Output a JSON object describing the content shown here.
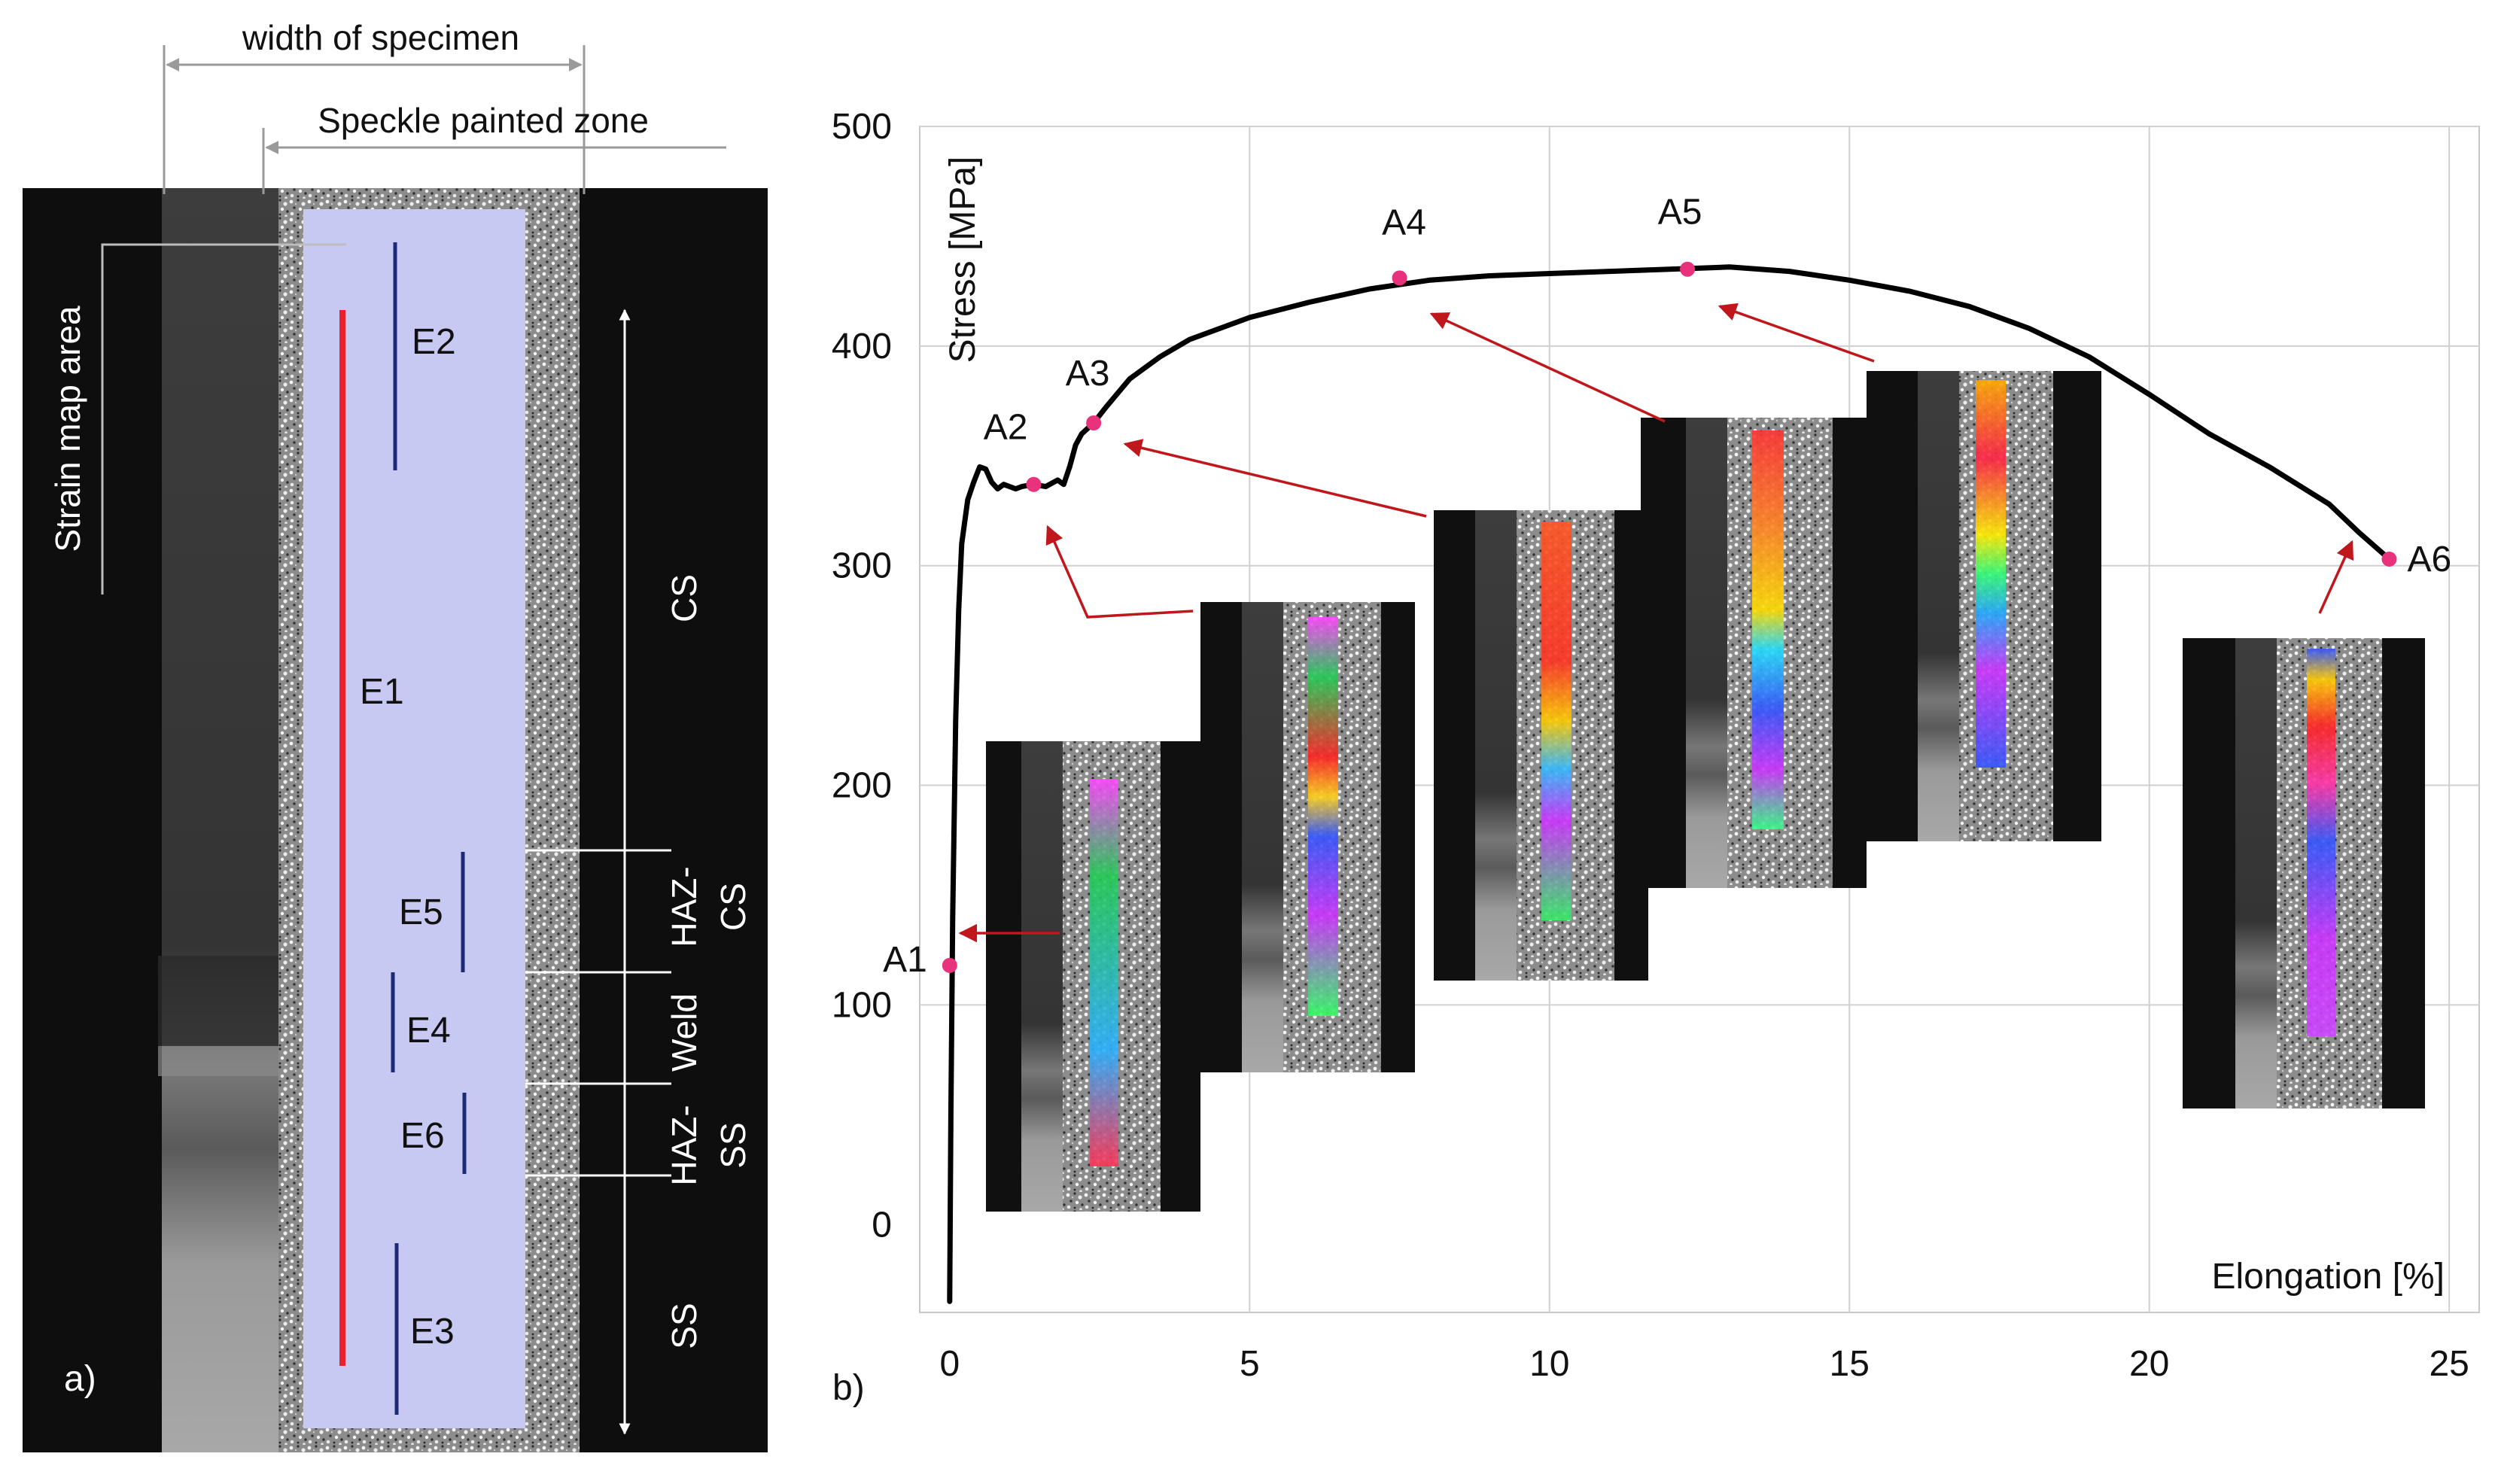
{
  "panel_a": {
    "panel_label": "a)",
    "width_label": "width of specimen",
    "speckle_label": "Speckle painted zone",
    "strain_map_label": "Strain map area",
    "lines": [
      {
        "id": "E1",
        "label": "E1",
        "color": "#e8212b"
      },
      {
        "id": "E2",
        "label": "E2",
        "color": "#1c2a78"
      },
      {
        "id": "E3",
        "label": "E3",
        "color": "#1c2a78"
      },
      {
        "id": "E4",
        "label": "E4",
        "color": "#1c2a78"
      },
      {
        "id": "E5",
        "label": "E5",
        "color": "#1c2a78"
      },
      {
        "id": "E6",
        "label": "E6",
        "color": "#1c2a78"
      }
    ],
    "zones": {
      "cs": "CS",
      "haz_cs_line1": "HAZ-",
      "haz_cs_line2": "CS",
      "weld": "Weld",
      "haz_ss_line1": "HAZ-",
      "haz_ss_line2": "SS",
      "ss": "SS"
    },
    "colors": {
      "background": "#111111",
      "strain_map_area": "#c7c9f2",
      "speckle": "#9d9d9d"
    }
  },
  "panel_b": {
    "panel_label": "b)",
    "point_color": "#e8327c",
    "arrow_color": "#c0171c",
    "curve_color": "#000000"
  },
  "chart_data": {
    "type": "line",
    "title": "",
    "xlabel": "Elongation [%]",
    "ylabel": "Stress [MPa]",
    "xlim": [
      -0.5,
      25.5
    ],
    "ylim": [
      -40,
      500
    ],
    "xticks": [
      "0",
      "5",
      "10",
      "15",
      "20",
      "25"
    ],
    "yticks": [
      "0",
      "100",
      "200",
      "300",
      "400",
      "500"
    ],
    "grid": true,
    "series": [
      {
        "x": [
          0,
          0.02,
          0.05,
          0.1,
          0.15,
          0.2,
          0.3,
          0.4,
          0.5,
          0.6,
          0.7,
          0.8,
          0.9,
          1.0,
          1.1,
          1.2,
          1.4,
          1.6,
          1.8,
          1.9,
          2.0,
          2.1,
          2.2,
          2.4,
          2.6,
          3.0,
          3.5,
          4.0,
          5.0,
          6.0,
          7.0,
          8.0,
          9.0,
          10.0,
          11.0,
          12.0,
          13.0,
          14.0,
          15.0,
          16.0,
          17.0,
          18.0,
          19.0,
          20.0,
          21.0,
          22.0,
          23.0,
          23.5,
          24.0
        ],
        "y": [
          -35,
          50,
          140,
          230,
          280,
          310,
          330,
          338,
          345,
          344,
          338,
          335,
          337,
          336,
          335,
          336,
          337,
          336,
          339,
          337,
          345,
          355,
          360,
          365,
          372,
          385,
          395,
          403,
          413,
          420,
          426,
          430,
          432,
          433,
          434,
          435,
          436,
          434,
          430,
          425,
          418,
          408,
          395,
          378,
          360,
          345,
          328,
          315,
          303
        ]
      }
    ],
    "points": [
      {
        "label": "A1",
        "x": 0.0,
        "y": 118
      },
      {
        "label": "A2",
        "x": 1.4,
        "y": 337
      },
      {
        "label": "A3",
        "x": 2.4,
        "y": 365
      },
      {
        "label": "A4",
        "x": 7.5,
        "y": 431
      },
      {
        "label": "A5",
        "x": 12.3,
        "y": 435
      },
      {
        "label": "A6",
        "x": 24.0,
        "y": 303
      }
    ]
  }
}
